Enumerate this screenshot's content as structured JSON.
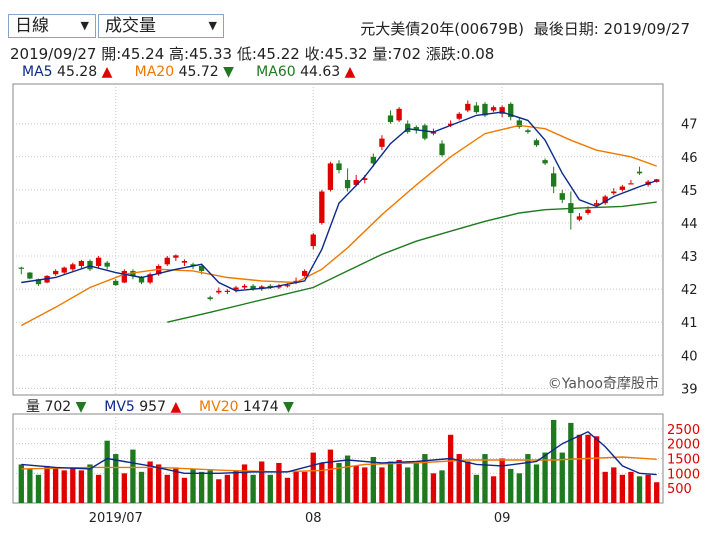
{
  "controls": {
    "period": {
      "label": "日線",
      "arrow": "▼"
    },
    "indicator": {
      "label": "成交量",
      "arrow": "▼"
    }
  },
  "header": {
    "security": "元大美債20年(00679B)",
    "last_date": "最後日期: 2019/09/27"
  },
  "quote": {
    "date": "2019/09/27",
    "open": "開:45.24",
    "high": "高:45.33",
    "low": "低:45.22",
    "close": "收:45.32",
    "volume": "量:702",
    "change": "漲跌:0.08"
  },
  "ma_legend": [
    {
      "name": "MA5",
      "value": "45.28",
      "arrow": "▲",
      "direction": "up",
      "color": "#0b2a8a"
    },
    {
      "name": "MA20",
      "value": "45.72",
      "arrow": "▼",
      "direction": "down",
      "color": "#f07800"
    },
    {
      "name": "MA60",
      "value": "44.63",
      "arrow": "▲",
      "direction": "up",
      "color": "#1f7a1f"
    }
  ],
  "vol_legend": [
    {
      "name": "量",
      "value": "702",
      "arrow": "▼",
      "direction": "down",
      "color": "#222222"
    },
    {
      "name": "MV5",
      "value": "957",
      "arrow": "▲",
      "direction": "up",
      "color": "#0b2a8a"
    },
    {
      "name": "MV20",
      "value": "1474",
      "arrow": "▼",
      "direction": "down",
      "color": "#f07800"
    }
  ],
  "watermark": "©Yahoo奇摩股市",
  "colors": {
    "up": "#e00000",
    "down": "#1f7a1f",
    "ma5": "#0b2a8a",
    "ma20": "#f07800",
    "ma60": "#1f7a1f",
    "grid": "#c8c8c8",
    "axis_label": "#e00000"
  },
  "chart_data": [
    {
      "type": "candlestick",
      "title": "",
      "ylim": [
        38.8,
        48.2
      ],
      "yticks": [
        39,
        40,
        41,
        42,
        43,
        44,
        45,
        46,
        47
      ],
      "x_labels": [
        {
          "label": "2019/07",
          "index": 11
        },
        {
          "label": "08",
          "index": 34
        },
        {
          "label": "09",
          "index": 56
        }
      ],
      "candles": [
        [
          42.65,
          42.62,
          42.45,
          42.68
        ],
        [
          42.5,
          42.32,
          42.3,
          42.52
        ],
        [
          42.3,
          42.15,
          42.1,
          42.32
        ],
        [
          42.2,
          42.4,
          42.18,
          42.42
        ],
        [
          42.45,
          42.55,
          42.4,
          42.6
        ],
        [
          42.5,
          42.65,
          42.45,
          42.68
        ],
        [
          42.6,
          42.75,
          42.55,
          42.8
        ],
        [
          42.7,
          42.85,
          42.6,
          42.88
        ],
        [
          42.85,
          42.6,
          42.55,
          42.9
        ],
        [
          42.7,
          42.95,
          42.65,
          43.0
        ],
        [
          42.8,
          42.68,
          42.6,
          42.85
        ],
        [
          42.25,
          42.12,
          42.1,
          42.3
        ],
        [
          42.2,
          42.55,
          42.18,
          42.6
        ],
        [
          42.55,
          42.4,
          42.3,
          42.6
        ],
        [
          42.35,
          42.2,
          42.15,
          42.4
        ],
        [
          42.2,
          42.45,
          42.15,
          42.5
        ],
        [
          42.45,
          42.7,
          42.4,
          42.75
        ],
        [
          42.75,
          42.95,
          42.7,
          43.0
        ],
        [
          42.95,
          43.02,
          42.85,
          43.05
        ],
        [
          42.8,
          42.85,
          42.7,
          42.9
        ],
        [
          42.75,
          42.72,
          42.6,
          42.8
        ],
        [
          42.7,
          42.55,
          42.45,
          42.72
        ],
        [
          41.75,
          41.7,
          41.65,
          41.8
        ],
        [
          41.9,
          41.95,
          41.85,
          42.05
        ],
        [
          41.95,
          41.95,
          41.85,
          42.0
        ],
        [
          41.98,
          42.05,
          41.9,
          42.1
        ],
        [
          42.05,
          42.1,
          42.0,
          42.15
        ],
        [
          42.1,
          42.0,
          41.95,
          42.15
        ],
        [
          42.0,
          42.08,
          41.95,
          42.12
        ],
        [
          42.1,
          42.05,
          42.0,
          42.15
        ],
        [
          42.05,
          42.1,
          42.0,
          42.15
        ],
        [
          42.1,
          42.12,
          42.05,
          42.18
        ],
        [
          42.2,
          42.25,
          42.15,
          42.35
        ],
        [
          42.4,
          42.55,
          42.35,
          42.6
        ],
        [
          43.3,
          43.65,
          43.2,
          43.7
        ],
        [
          44.0,
          44.95,
          43.95,
          45.0
        ],
        [
          45.0,
          45.8,
          44.95,
          45.85
        ],
        [
          45.8,
          45.6,
          45.5,
          45.9
        ],
        [
          45.3,
          45.05,
          44.95,
          45.65
        ],
        [
          45.15,
          45.3,
          45.1,
          45.45
        ],
        [
          45.3,
          45.35,
          45.2,
          45.45
        ],
        [
          46.0,
          45.8,
          45.7,
          46.1
        ],
        [
          46.3,
          46.55,
          46.2,
          46.65
        ],
        [
          47.25,
          47.05,
          47.0,
          47.4
        ],
        [
          47.1,
          47.45,
          47.05,
          47.5
        ],
        [
          47.0,
          46.75,
          46.7,
          47.1
        ],
        [
          46.9,
          46.8,
          46.7,
          46.95
        ],
        [
          46.95,
          46.55,
          46.5,
          47.0
        ],
        [
          46.7,
          46.75,
          46.65,
          46.85
        ],
        [
          46.4,
          46.05,
          46.0,
          46.5
        ],
        [
          46.95,
          47.0,
          46.9,
          47.1
        ],
        [
          47.15,
          47.3,
          47.1,
          47.35
        ],
        [
          47.4,
          47.6,
          47.35,
          47.7
        ],
        [
          47.55,
          47.35,
          47.3,
          47.65
        ],
        [
          47.6,
          47.25,
          47.2,
          47.65
        ],
        [
          47.4,
          47.5,
          47.35,
          47.55
        ],
        [
          47.3,
          47.5,
          47.2,
          47.55
        ],
        [
          47.6,
          47.2,
          47.1,
          47.65
        ],
        [
          47.1,
          46.9,
          46.85,
          47.2
        ],
        [
          46.8,
          46.75,
          46.7,
          46.85
        ],
        [
          46.5,
          46.35,
          46.3,
          46.55
        ],
        [
          45.9,
          45.8,
          45.75,
          45.95
        ],
        [
          45.5,
          45.1,
          44.9,
          45.7
        ],
        [
          44.9,
          44.7,
          44.6,
          45.0
        ],
        [
          44.6,
          44.3,
          43.8,
          44.95
        ],
        [
          44.1,
          44.2,
          44.05,
          44.3
        ],
        [
          44.3,
          44.4,
          44.25,
          44.5
        ],
        [
          44.55,
          44.6,
          44.5,
          44.7
        ],
        [
          44.6,
          44.8,
          44.55,
          44.85
        ],
        [
          44.9,
          44.95,
          44.85,
          45.05
        ],
        [
          45.0,
          45.1,
          44.95,
          45.15
        ],
        [
          45.2,
          45.2,
          45.2,
          45.3
        ],
        [
          45.55,
          45.5,
          45.45,
          45.7
        ],
        [
          45.15,
          45.25,
          45.1,
          45.3
        ],
        [
          45.24,
          45.32,
          45.22,
          45.33
        ]
      ],
      "ma5": [
        [
          0,
          42.2
        ],
        [
          4,
          42.35
        ],
        [
          8,
          42.7
        ],
        [
          11,
          42.5
        ],
        [
          14,
          42.35
        ],
        [
          18,
          42.6
        ],
        [
          21,
          42.75
        ],
        [
          23,
          42.2
        ],
        [
          25,
          41.95
        ],
        [
          29,
          42.05
        ],
        [
          33,
          42.25
        ],
        [
          35,
          43.2
        ],
        [
          37,
          44.6
        ],
        [
          40,
          45.4
        ],
        [
          43,
          46.4
        ],
        [
          45,
          46.85
        ],
        [
          48,
          46.75
        ],
        [
          50,
          46.95
        ],
        [
          53,
          47.25
        ],
        [
          56,
          47.35
        ],
        [
          59,
          47.1
        ],
        [
          61,
          46.5
        ],
        [
          63,
          45.5
        ],
        [
          65,
          44.7
        ],
        [
          67,
          44.5
        ],
        [
          69,
          44.8
        ],
        [
          72,
          45.1
        ],
        [
          74,
          45.28
        ]
      ],
      "ma20": [
        [
          0,
          40.9
        ],
        [
          4,
          41.45
        ],
        [
          8,
          42.05
        ],
        [
          12,
          42.45
        ],
        [
          16,
          42.6
        ],
        [
          20,
          42.55
        ],
        [
          24,
          42.35
        ],
        [
          28,
          42.25
        ],
        [
          32,
          42.2
        ],
        [
          35,
          42.6
        ],
        [
          38,
          43.25
        ],
        [
          42,
          44.25
        ],
        [
          46,
          45.15
        ],
        [
          50,
          46.0
        ],
        [
          54,
          46.7
        ],
        [
          58,
          46.95
        ],
        [
          61,
          46.85
        ],
        [
          64,
          46.5
        ],
        [
          67,
          46.2
        ],
        [
          71,
          46.0
        ],
        [
          74,
          45.72
        ]
      ],
      "ma60": [
        [
          17,
          41.0
        ],
        [
          22,
          41.3
        ],
        [
          26,
          41.55
        ],
        [
          30,
          41.8
        ],
        [
          34,
          42.05
        ],
        [
          38,
          42.55
        ],
        [
          42,
          43.05
        ],
        [
          46,
          43.45
        ],
        [
          50,
          43.75
        ],
        [
          54,
          44.05
        ],
        [
          58,
          44.3
        ],
        [
          61,
          44.4
        ],
        [
          65,
          44.45
        ],
        [
          70,
          44.5
        ],
        [
          74,
          44.63
        ]
      ]
    },
    {
      "type": "bar",
      "title": "",
      "ylim": [
        0,
        3000
      ],
      "yticks": [
        500,
        1000,
        1500,
        2000,
        2500
      ],
      "volumes": [
        1300,
        1150,
        950,
        1250,
        1200,
        1100,
        1200,
        1100,
        1300,
        950,
        2100,
        1650,
        1000,
        1800,
        1050,
        1400,
        1300,
        950,
        1200,
        850,
        1150,
        1050,
        1100,
        800,
        950,
        1100,
        1300,
        950,
        1400,
        950,
        1350,
        850,
        1050,
        1050,
        1700,
        1350,
        1800,
        1350,
        1600,
        1250,
        1200,
        1550,
        1200,
        1400,
        1450,
        1200,
        1350,
        1650,
        1000,
        1100,
        2300,
        1650,
        1400,
        950,
        1650,
        900,
        1500,
        1150,
        1000,
        1650,
        1300,
        1700,
        2800,
        1700,
        2700,
        2300,
        2300,
        2250,
        1050,
        1200,
        950,
        1050,
        900,
        950,
        700
      ],
      "mv5": [
        [
          0,
          1300
        ],
        [
          4,
          1200
        ],
        [
          8,
          1150
        ],
        [
          10,
          1500
        ],
        [
          12,
          1400
        ],
        [
          15,
          1250
        ],
        [
          19,
          1000
        ],
        [
          23,
          1000
        ],
        [
          27,
          1050
        ],
        [
          31,
          1050
        ],
        [
          35,
          1350
        ],
        [
          38,
          1450
        ],
        [
          42,
          1350
        ],
        [
          46,
          1400
        ],
        [
          50,
          1500
        ],
        [
          53,
          1300
        ],
        [
          56,
          1250
        ],
        [
          60,
          1400
        ],
        [
          63,
          2000
        ],
        [
          66,
          2400
        ],
        [
          68,
          1900
        ],
        [
          70,
          1250
        ],
        [
          72,
          1000
        ],
        [
          74,
          957
        ]
      ],
      "mv20": [
        [
          0,
          1150
        ],
        [
          8,
          1200
        ],
        [
          16,
          1200
        ],
        [
          24,
          1100
        ],
        [
          30,
          1050
        ],
        [
          35,
          1100
        ],
        [
          40,
          1300
        ],
        [
          46,
          1350
        ],
        [
          52,
          1450
        ],
        [
          58,
          1450
        ],
        [
          62,
          1450
        ],
        [
          66,
          1500
        ],
        [
          70,
          1550
        ],
        [
          74,
          1474
        ]
      ]
    }
  ]
}
